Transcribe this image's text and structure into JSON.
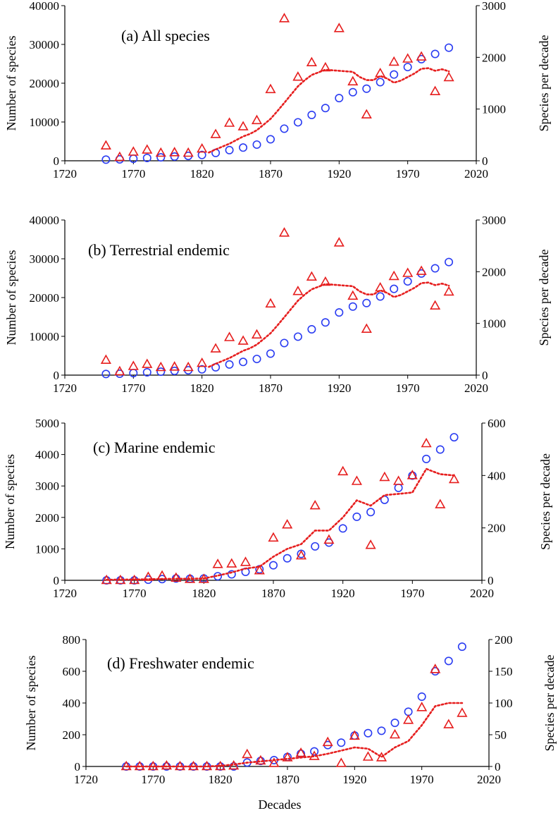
{
  "figure": {
    "x_axis_title": "Decades"
  },
  "colors": {
    "cumulative": "#2a3cf2",
    "per_decade": "#e61e1e",
    "trend": "#e61e1e",
    "axis": "#000000"
  },
  "chart_data": [
    {
      "type": "scatter",
      "title": "(a) All species",
      "xlabel": "",
      "ylabel": "Number of species",
      "y2label": "Species per decade",
      "xlim": [
        1720,
        2020
      ],
      "xticks": [
        1720,
        1770,
        1820,
        1870,
        1920,
        1970,
        2020
      ],
      "ylim": [
        0,
        40000
      ],
      "yticks": [
        0,
        10000,
        20000,
        30000,
        40000
      ],
      "y2lim": [
        0,
        3000
      ],
      "y2ticks": [
        0,
        1000,
        2000,
        3000
      ],
      "decades": [
        1750,
        1760,
        1770,
        1780,
        1790,
        1800,
        1810,
        1820,
        1830,
        1840,
        1850,
        1860,
        1870,
        1880,
        1890,
        1900,
        1910,
        1920,
        1930,
        1940,
        1950,
        1960,
        1970,
        1980,
        1990,
        2000
      ],
      "series": [
        {
          "marker": "circle",
          "axis": "left",
          "values": [
            290,
            360,
            530,
            730,
            880,
            1090,
            1260,
            1490,
            2020,
            2750,
            3400,
            4170,
            5550,
            8280,
            9920,
            11820,
            13590,
            16160,
            17680,
            18590,
            20280,
            22240,
            24170,
            26200,
            27550,
            29160
          ]
        },
        {
          "marker": "triangle",
          "axis": "right",
          "values": [
            290,
            70,
            170,
            210,
            150,
            160,
            150,
            230,
            510,
            730,
            660,
            780,
            1380,
            2750,
            1620,
            1900,
            1800,
            2560,
            1530,
            890,
            1690,
            1910,
            1970,
            2010,
            1340,
            1610
          ]
        },
        {
          "marker": "dotted-line",
          "axis": "right",
          "x": [
            1825,
            1830,
            1840,
            1850,
            1855,
            1860,
            1865,
            1870,
            1875,
            1880,
            1885,
            1890,
            1895,
            1900,
            1910,
            1920,
            1930,
            1935,
            1940,
            1945,
            1950,
            1955,
            1960,
            1965,
            1970,
            1975,
            1980,
            1985,
            1990,
            1995,
            2000
          ],
          "values": [
            160,
            220,
            330,
            470,
            520,
            590,
            700,
            810,
            960,
            1120,
            1280,
            1440,
            1560,
            1660,
            1760,
            1740,
            1720,
            1620,
            1560,
            1560,
            1640,
            1590,
            1510,
            1550,
            1620,
            1690,
            1780,
            1790,
            1740,
            1770,
            1730
          ]
        }
      ]
    },
    {
      "type": "scatter",
      "title": "(b) Terrestrial endemic",
      "xlabel": "",
      "ylabel": "Number of species",
      "y2label": "Species per decade",
      "xlim": [
        1720,
        2020
      ],
      "xticks": [
        1720,
        1770,
        1820,
        1870,
        1920,
        1970,
        2020
      ],
      "ylim": [
        0,
        40000
      ],
      "yticks": [
        0,
        10000,
        20000,
        30000,
        40000
      ],
      "y2lim": [
        0,
        3000
      ],
      "y2ticks": [
        0,
        1000,
        2000,
        3000
      ],
      "decades": [
        1750,
        1760,
        1770,
        1780,
        1790,
        1800,
        1810,
        1820,
        1830,
        1840,
        1850,
        1860,
        1870,
        1880,
        1890,
        1900,
        1910,
        1920,
        1930,
        1940,
        1950,
        1960,
        1970,
        1980,
        1990,
        2000
      ],
      "series": [
        {
          "marker": "circle",
          "axis": "left",
          "values": [
            290,
            360,
            530,
            730,
            880,
            1090,
            1260,
            1490,
            2020,
            2750,
            3400,
            4170,
            5550,
            8280,
            9920,
            11820,
            13590,
            16160,
            17680,
            18590,
            20280,
            22240,
            24170,
            26200,
            27550,
            29160
          ]
        },
        {
          "marker": "triangle",
          "axis": "right",
          "values": [
            290,
            70,
            170,
            210,
            150,
            160,
            150,
            230,
            510,
            730,
            660,
            780,
            1380,
            2750,
            1620,
            1900,
            1800,
            2560,
            1530,
            890,
            1690,
            1910,
            1970,
            2010,
            1340,
            1610
          ]
        },
        {
          "marker": "dotted-line",
          "axis": "right",
          "x": [
            1825,
            1830,
            1840,
            1850,
            1855,
            1860,
            1865,
            1870,
            1875,
            1880,
            1885,
            1890,
            1895,
            1900,
            1910,
            1920,
            1930,
            1935,
            1940,
            1945,
            1950,
            1955,
            1960,
            1965,
            1970,
            1975,
            1980,
            1985,
            1990,
            1995,
            2000
          ],
          "values": [
            160,
            220,
            330,
            470,
            520,
            590,
            700,
            810,
            960,
            1120,
            1280,
            1440,
            1560,
            1660,
            1760,
            1740,
            1720,
            1620,
            1560,
            1560,
            1640,
            1590,
            1510,
            1550,
            1620,
            1690,
            1780,
            1790,
            1740,
            1770,
            1730
          ]
        }
      ]
    },
    {
      "type": "scatter",
      "title": "(c) Marine endemic",
      "xlabel": "",
      "ylabel": "Number of species",
      "y2label": "Species per decade",
      "xlim": [
        1720,
        2020
      ],
      "xticks": [
        1720,
        1770,
        1820,
        1870,
        1920,
        1970,
        2020
      ],
      "ylim": [
        0,
        5000
      ],
      "yticks": [
        0,
        1000,
        2000,
        3000,
        4000,
        5000
      ],
      "y2lim": [
        0,
        600
      ],
      "y2ticks": [
        0,
        200,
        400,
        600
      ],
      "decades": [
        1750,
        1760,
        1770,
        1780,
        1790,
        1800,
        1810,
        1820,
        1830,
        1840,
        1850,
        1860,
        1870,
        1880,
        1890,
        1900,
        1910,
        1920,
        1930,
        1940,
        1950,
        1960,
        1970,
        1980,
        1990,
        2000
      ],
      "series": [
        {
          "marker": "circle",
          "axis": "left",
          "values": [
            0,
            0,
            0,
            20,
            40,
            60,
            50,
            60,
            130,
            190,
            270,
            350,
            480,
            700,
            840,
            1080,
            1200,
            1650,
            2020,
            2170,
            2560,
            2940,
            3330,
            3860,
            4160,
            4550
          ]
        },
        {
          "marker": "triangle",
          "axis": "right",
          "values": [
            0,
            0,
            0,
            12,
            17,
            9,
            4,
            4,
            61,
            63,
            69,
            37,
            162,
            212,
            94,
            285,
            154,
            415,
            378,
            134,
            393,
            378,
            400,
            522,
            289,
            385
          ]
        },
        {
          "marker": "dotted-line",
          "axis": "right",
          "x": [
            1750,
            1760,
            1770,
            1780,
            1790,
            1800,
            1810,
            1820,
            1830,
            1840,
            1850,
            1860,
            1870,
            1880,
            1890,
            1900,
            1910,
            1920,
            1930,
            1940,
            1950,
            1960,
            1970,
            1980,
            1990,
            2000
          ],
          "values": [
            2,
            3,
            3,
            4,
            5,
            6,
            6,
            7,
            18,
            30,
            45,
            52,
            90,
            120,
            138,
            190,
            190,
            240,
            305,
            285,
            325,
            330,
            335,
            425,
            405,
            400
          ]
        }
      ]
    },
    {
      "type": "scatter",
      "title": "(d) Freshwater endemic",
      "xlabel": "Decades",
      "ylabel": "Number of species",
      "y2label": "Species per decade",
      "xlim": [
        1720,
        2020
      ],
      "xticks": [
        1720,
        1770,
        1820,
        1870,
        1920,
        1970,
        2020
      ],
      "ylim": [
        0,
        800
      ],
      "yticks": [
        0,
        200,
        400,
        600,
        800
      ],
      "y2lim": [
        0,
        200
      ],
      "y2ticks": [
        0,
        50,
        100,
        150,
        200
      ],
      "decades": [
        1750,
        1760,
        1770,
        1780,
        1790,
        1800,
        1810,
        1820,
        1830,
        1840,
        1850,
        1860,
        1870,
        1880,
        1890,
        1900,
        1910,
        1920,
        1930,
        1940,
        1950,
        1960,
        1970,
        1980,
        1990,
        2000
      ],
      "series": [
        {
          "marker": "circle",
          "axis": "left",
          "values": [
            0,
            0,
            0,
            0,
            0,
            0,
            0,
            0,
            0,
            25,
            35,
            40,
            60,
            80,
            95,
            135,
            150,
            195,
            210,
            225,
            275,
            345,
            440,
            600,
            665,
            755
          ]
        },
        {
          "marker": "triangle",
          "axis": "right",
          "values": [
            0,
            0,
            0,
            1,
            0,
            0,
            0,
            0,
            1,
            19,
            9,
            5,
            14,
            21,
            16,
            38,
            5,
            48,
            15,
            14,
            50,
            73,
            93,
            153,
            66,
            84
          ]
        },
        {
          "marker": "dotted-line",
          "axis": "right",
          "x": [
            1750,
            1760,
            1770,
            1780,
            1790,
            1800,
            1810,
            1820,
            1830,
            1840,
            1850,
            1860,
            1870,
            1880,
            1890,
            1900,
            1910,
            1920,
            1930,
            1940,
            1950,
            1960,
            1970,
            1980,
            1990,
            2000
          ],
          "values": [
            0,
            0,
            0,
            0,
            0,
            0,
            0,
            1,
            3,
            6,
            8,
            10,
            12,
            14,
            16,
            20,
            25,
            30,
            28,
            15,
            30,
            40,
            65,
            95,
            100,
            100
          ]
        }
      ]
    }
  ]
}
